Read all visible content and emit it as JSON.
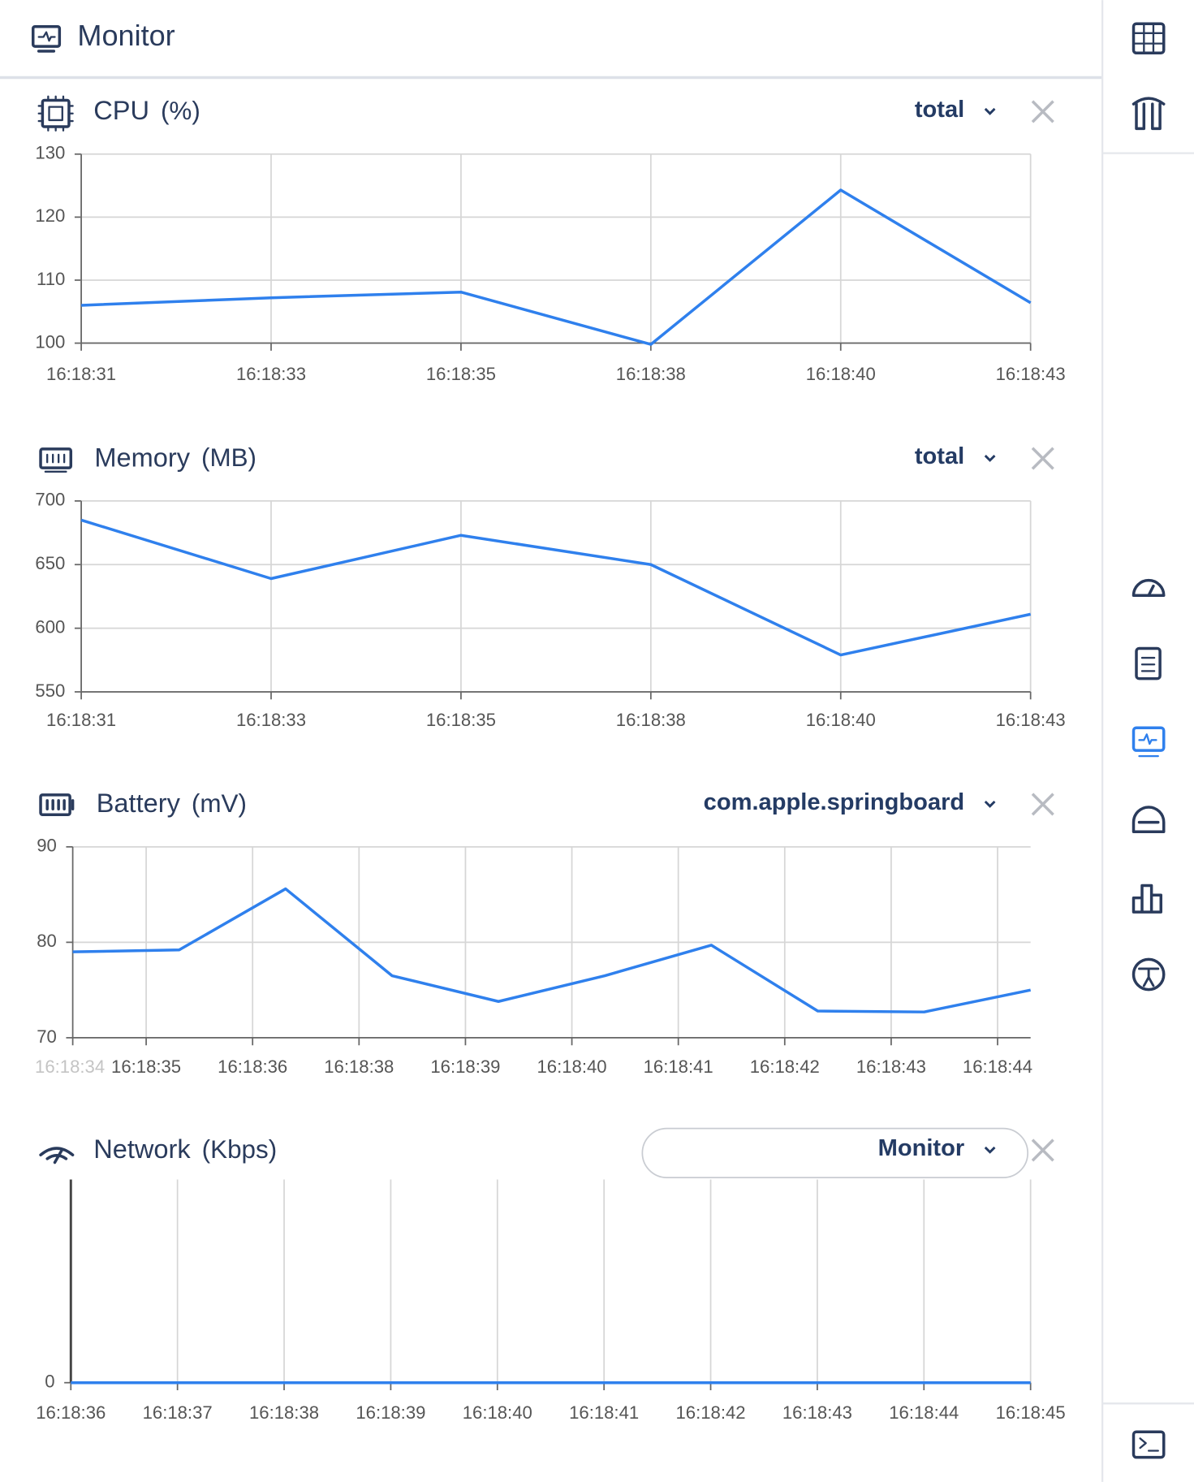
{
  "header": {
    "title": "Monitor"
  },
  "chart_data": [
    {
      "type": "line",
      "title": "CPU",
      "unit": "(%)",
      "selector": "total",
      "color": "#2f80ed",
      "grid": true,
      "categories": [
        "16:18:31",
        "16:18:33",
        "16:18:35",
        "16:18:38",
        "16:18:40",
        "16:18:43"
      ],
      "values": [
        106.0,
        107.2,
        108.1,
        99.8,
        124.3,
        106.4
      ],
      "ylim": [
        100,
        130
      ],
      "yticks": [
        100,
        110,
        120,
        130
      ]
    },
    {
      "type": "line",
      "title": "Memory",
      "unit": "(MB)",
      "selector": "total",
      "color": "#2f80ed",
      "grid": true,
      "categories": [
        "16:18:31",
        "16:18:33",
        "16:18:35",
        "16:18:38",
        "16:18:40",
        "16:18:43"
      ],
      "values": [
        685,
        639,
        673,
        650,
        579,
        611
      ],
      "ylim": [
        550,
        700
      ],
      "yticks": [
        550,
        600,
        650,
        700
      ]
    },
    {
      "type": "line",
      "title": "Battery",
      "unit": "(mV)",
      "selector": "com.apple.springboard",
      "color": "#2f80ed",
      "grid": true,
      "x": [
        0,
        1,
        2,
        3,
        4,
        5,
        6,
        7,
        8,
        9
      ],
      "values": [
        79.0,
        79.2,
        85.6,
        76.5,
        73.8,
        76.5,
        79.7,
        72.8,
        72.7,
        75.0
      ],
      "xlim": [
        0,
        9
      ],
      "xticks": [
        {
          "value": 0,
          "label": "16:18:34"
        },
        {
          "value": 0.69,
          "label": "16:18:35"
        },
        {
          "value": 1.69,
          "label": "16:18:36"
        },
        {
          "value": 2.69,
          "label": "16:18:38"
        },
        {
          "value": 3.69,
          "label": "16:18:39"
        },
        {
          "value": 4.69,
          "label": "16:18:40"
        },
        {
          "value": 5.69,
          "label": "16:18:41"
        },
        {
          "value": 6.69,
          "label": "16:18:42"
        },
        {
          "value": 7.69,
          "label": "16:18:43"
        },
        {
          "value": 8.69,
          "label": "16:18:44"
        }
      ],
      "ylim": [
        70,
        90
      ],
      "yticks": [
        70,
        80,
        90
      ]
    },
    {
      "type": "line",
      "title": "Network",
      "unit": "(Kbps)",
      "selector": "Monitor",
      "color": "#2f80ed",
      "grid": true,
      "categories": [
        "16:18:36",
        "16:18:37",
        "16:18:38",
        "16:18:39",
        "16:18:40",
        "16:18:41",
        "16:18:42",
        "16:18:43",
        "16:18:44",
        "16:18:45"
      ],
      "values": [
        0,
        0,
        0,
        0,
        0,
        0,
        0,
        0,
        0,
        0
      ],
      "ylim": [
        0,
        1
      ],
      "yticks": [
        0
      ]
    }
  ]
}
